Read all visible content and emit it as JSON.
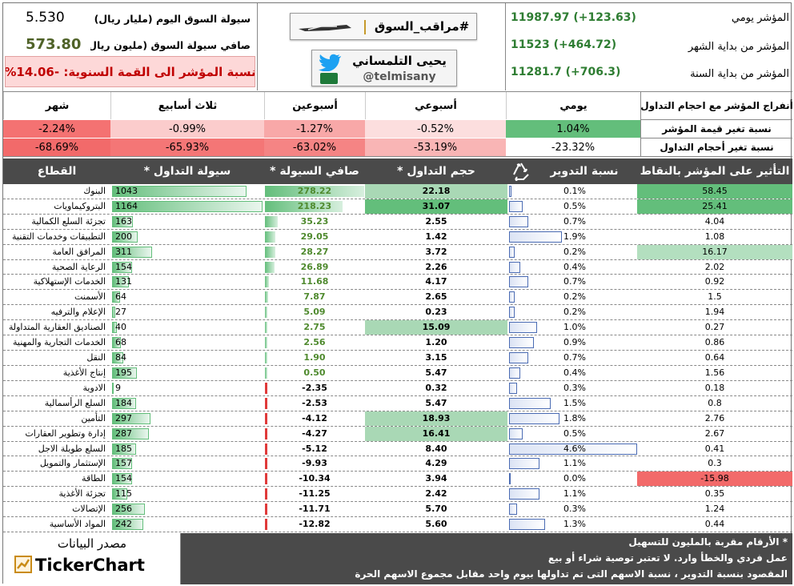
{
  "summary": {
    "liquidity_today_label": "سيولة السوق اليوم (مليار ريال)",
    "liquidity_today_value": "5.530",
    "net_liquidity_label": "صافي سيولة السوق (مليون ريال)",
    "net_liquidity_value": "573.80",
    "from_peak_label": "نسبة المؤشر الى القمة السنوية: -14.06%"
  },
  "brand": {
    "hashtag": "#مراقب_السوق",
    "author_name": "يحيى التلمساني",
    "author_handle": "@telmisany"
  },
  "index": {
    "daily_label": "المؤشر يومي",
    "daily_value": "11987.97 (+123.63)",
    "month_label": "المؤشر من بداية الشهر",
    "month_value": "11523 (+464.72)",
    "year_label": "المؤشر من بداية السنة",
    "year_value": "11281.7 (+706.3)"
  },
  "periods": {
    "title": "أنفراج المؤشر مع احجام التداول",
    "headers": [
      "يومي",
      "أسبوعي",
      "أسبوعين",
      "ثلاث أسابيع",
      "شهر"
    ],
    "rows": [
      {
        "label": "نسبة تغير قيمة المؤشر",
        "values": [
          "1.04%",
          "-0.52%",
          "-1.27%",
          "-0.99%",
          "-2.24%"
        ],
        "colors": [
          "#63be7b",
          "#fcdede",
          "#f8a8a8",
          "#fbcccc",
          "#f47272"
        ]
      },
      {
        "label": "نسبة تغير أحجام التداول",
        "values": [
          "-23.32%",
          "-53.19%",
          "-63.02%",
          "-65.93%",
          "-68.69%"
        ],
        "colors": [
          "#ffffff",
          "#f9b5b5",
          "#f58484",
          "#f47676",
          "#f26a6a"
        ]
      }
    ]
  },
  "table": {
    "headers": {
      "impact": "التأثير على المؤشر بالنقاط",
      "turnover": "نسبة التدوير",
      "volume": "حجم التداول *",
      "net_liquidity": "صافي السيولة *",
      "liquidity": "سيولة التداول *",
      "sector": "القطاع"
    },
    "recycle_icon": "recycle-icon"
  },
  "chart_data": {
    "type": "table",
    "units_note": "* الأرقام مقربة بالمليون للتسهيل",
    "columns": [
      "القطاع",
      "سيولة التداول *",
      "صافي السيولة *",
      "حجم التداول *",
      "نسبة التدوير",
      "التأثير على المؤشر بالنقاط"
    ],
    "rows": [
      {
        "sector": "البنوك",
        "liquidity": 1043,
        "net_liquidity": 278.22,
        "volume": 22.18,
        "turnover": 0.1,
        "impact": 58.45
      },
      {
        "sector": "البتروكيماويات",
        "liquidity": 1164,
        "net_liquidity": 218.23,
        "volume": 31.07,
        "turnover": 0.5,
        "impact": 25.41
      },
      {
        "sector": "تجزئة السلع الكمالية",
        "liquidity": 163,
        "net_liquidity": 35.23,
        "volume": 2.55,
        "turnover": 0.7,
        "impact": 4.04
      },
      {
        "sector": "التطبيقات وخدمات التقنية",
        "liquidity": 200,
        "net_liquidity": 29.05,
        "volume": 1.42,
        "turnover": 1.9,
        "impact": 1.08
      },
      {
        "sector": "المرافق العامة",
        "liquidity": 311,
        "net_liquidity": 28.27,
        "volume": 3.72,
        "turnover": 0.2,
        "impact": 16.17
      },
      {
        "sector": "الرعاية الصحية",
        "liquidity": 154,
        "net_liquidity": 26.89,
        "volume": 2.26,
        "turnover": 0.4,
        "impact": 2.02
      },
      {
        "sector": "الخدمات الإستهلاكية",
        "liquidity": 131,
        "net_liquidity": 11.68,
        "volume": 4.17,
        "turnover": 0.7,
        "impact": 0.92
      },
      {
        "sector": "الأسمنت",
        "liquidity": 64,
        "net_liquidity": 7.87,
        "volume": 2.65,
        "turnover": 0.2,
        "impact": 1.5
      },
      {
        "sector": "الإعلام والترفيه",
        "liquidity": 27,
        "net_liquidity": 5.09,
        "volume": 0.23,
        "turnover": 0.2,
        "impact": 1.94
      },
      {
        "sector": "الصناديق العقارية المتداولة",
        "liquidity": 40,
        "net_liquidity": 2.75,
        "volume": 15.09,
        "turnover": 1.0,
        "impact": 0.27
      },
      {
        "sector": "الخدمات التجارية والمهنية",
        "liquidity": 68,
        "net_liquidity": 2.56,
        "volume": 1.2,
        "turnover": 0.9,
        "impact": 0.86
      },
      {
        "sector": "النقل",
        "liquidity": 84,
        "net_liquidity": 1.9,
        "volume": 3.15,
        "turnover": 0.7,
        "impact": 0.64
      },
      {
        "sector": "إنتاج الأغذية",
        "liquidity": 195,
        "net_liquidity": 0.5,
        "volume": 5.47,
        "turnover": 0.4,
        "impact": 1.56
      },
      {
        "sector": "الادوية",
        "liquidity": 9,
        "net_liquidity": -2.35,
        "volume": 0.32,
        "turnover": 0.3,
        "impact": 0.18
      },
      {
        "sector": "السلع الرأسمالية",
        "liquidity": 184,
        "net_liquidity": -2.53,
        "volume": 5.47,
        "turnover": 1.5,
        "impact": 0.8
      },
      {
        "sector": "التأمين",
        "liquidity": 297,
        "net_liquidity": -4.12,
        "volume": 18.93,
        "turnover": 1.8,
        "impact": 2.76
      },
      {
        "sector": "إدارة وتطوير العقارات",
        "liquidity": 287,
        "net_liquidity": -4.27,
        "volume": 16.41,
        "turnover": 0.5,
        "impact": 2.67
      },
      {
        "sector": "السلع طويلة الاجل",
        "liquidity": 185,
        "net_liquidity": -5.12,
        "volume": 8.4,
        "turnover": 4.6,
        "impact": 0.41
      },
      {
        "sector": "الإستثمار والتمويل",
        "liquidity": 157,
        "net_liquidity": -9.93,
        "volume": 4.29,
        "turnover": 1.1,
        "impact": 0.3
      },
      {
        "sector": "الطاقة",
        "liquidity": 154,
        "net_liquidity": -10.34,
        "volume": 3.94,
        "turnover": 0.0,
        "impact": -15.98
      },
      {
        "sector": "تجزئة الأغذية",
        "liquidity": 115,
        "net_liquidity": -11.25,
        "volume": 2.42,
        "turnover": 1.1,
        "impact": 0.35
      },
      {
        "sector": "الإتصالات",
        "liquidity": 256,
        "net_liquidity": -11.71,
        "volume": 5.7,
        "turnover": 0.3,
        "impact": 1.24
      },
      {
        "sector": "المواد الأساسية",
        "liquidity": 242,
        "net_liquidity": -12.82,
        "volume": 5.6,
        "turnover": 1.3,
        "impact": 0.44
      }
    ]
  },
  "footer": {
    "source_label": "مصدر البيانات",
    "source_brand": "TickerChart",
    "note1": "* الأرقام مقربة بالمليون للتسهيل",
    "note2": "عمل فردي والخطأ وارد. لا تعتبر توصية شراء أو بيع",
    "note3": "المقصود بنسبة التدوير ، نسبة الاسهم التى تم تداولها بيوم واحد مقابل مجموع الاسهم الحرة"
  }
}
